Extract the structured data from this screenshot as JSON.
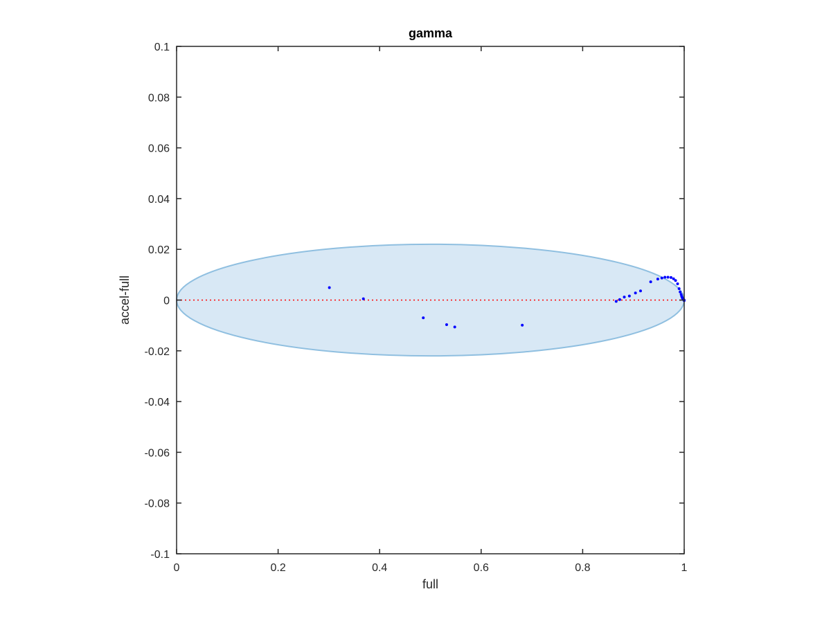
{
  "chart_data": {
    "type": "scatter",
    "title": "gamma",
    "xlabel": "full",
    "ylabel": "accel-full",
    "xlim": [
      0,
      1
    ],
    "ylim": [
      -0.1,
      0.1
    ],
    "xticks": [
      0,
      0.2,
      0.4,
      0.6,
      0.8,
      1
    ],
    "xtick_labels": [
      "0",
      "0.2",
      "0.4",
      "0.6",
      "0.8",
      "1"
    ],
    "yticks": [
      0.1,
      0.08,
      0.06,
      0.04,
      0.02,
      0,
      -0.02,
      -0.04,
      -0.06,
      -0.08,
      -0.1
    ],
    "ytick_labels": [
      "0.1",
      "0.08",
      "0.06",
      "0.04",
      "0.02",
      "0",
      "-0.02",
      "-0.04",
      "-0.06",
      "-0.08",
      "-0.1"
    ],
    "grid": false,
    "ellipse": {
      "center": [
        0.5,
        0
      ],
      "semi_axis_x": 0.5,
      "semi_axis_y": 0.022,
      "fill_color": "#d8e8f5",
      "edge_color": "#8fbfe0"
    },
    "reference_line": {
      "y": 0,
      "x_range": [
        0,
        1
      ],
      "style": "dotted",
      "color": "#ff0000"
    },
    "series": [
      {
        "marker_color": "#0000ff",
        "x": [
          0.301,
          0.368,
          0.486,
          0.532,
          0.548,
          0.681,
          0.866,
          0.873,
          0.882,
          0.892,
          0.904,
          0.914,
          0.934,
          0.948,
          0.956,
          0.962,
          0.968,
          0.974,
          0.979,
          0.983,
          0.987,
          0.99,
          0.992,
          0.994,
          0.995,
          0.996,
          0.997,
          0.998,
          0.999,
          1.0,
          1.0
        ],
        "y": [
          0.0049,
          0.0005,
          -0.007,
          -0.0097,
          -0.0106,
          -0.0099,
          -0.0005,
          0.0002,
          0.0012,
          0.0016,
          0.0028,
          0.0036,
          0.0072,
          0.0083,
          0.0087,
          0.009,
          0.009,
          0.0089,
          0.0084,
          0.0077,
          0.0064,
          0.0045,
          0.0032,
          0.0022,
          0.0015,
          0.001,
          0.0006,
          0.0003,
          0.0001,
          0.0,
          -0.0002
        ]
      }
    ]
  }
}
